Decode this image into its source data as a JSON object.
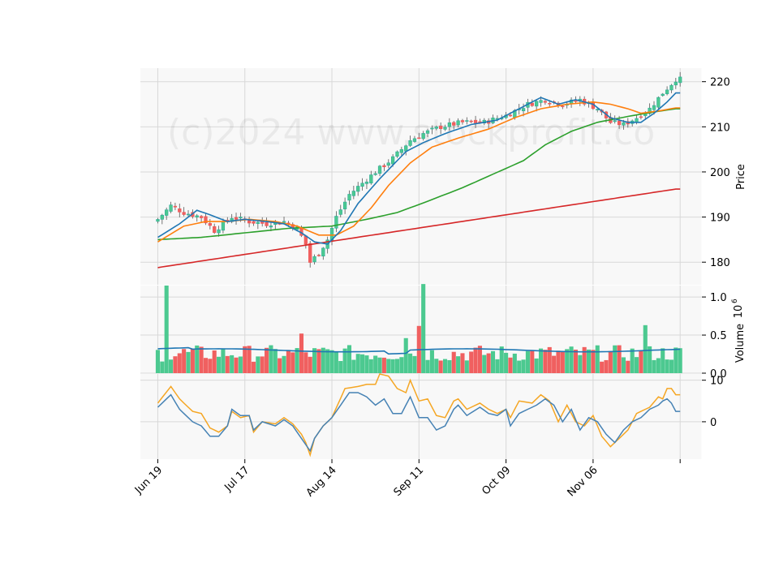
{
  "watermark": "(c)2024 www.stockprofit.co",
  "colors": {
    "up": "#26a69a",
    "up_fill": "#4cc990",
    "down": "#ef5350",
    "down_fill": "#f06060",
    "ma_short": "#1f77b4",
    "ma_mid": "#ff7f0e",
    "ma_long": "#2ca02c",
    "ma_xlong": "#d62728",
    "vol_ma": "#1f77b4",
    "osc_a": "#f5a623",
    "osc_b": "#4682b4",
    "panel_bg": "#f8f8f8",
    "grid": "#d8d8d8"
  },
  "chart_data": [
    {
      "type": "candlestick",
      "panel": "price",
      "ylabel": "Price",
      "ylim": [
        175,
        223
      ],
      "yticks": [
        180,
        190,
        200,
        210,
        220
      ],
      "xlim": [
        -4,
        125
      ],
      "xticks": [
        {
          "i": 0,
          "label": "Jun 19"
        },
        {
          "i": 20,
          "label": "Jul 17"
        },
        {
          "i": 40,
          "label": "Aug 14"
        },
        {
          "i": 60,
          "label": "Sep 11"
        },
        {
          "i": 80,
          "label": "Oct 09"
        },
        {
          "i": 100,
          "label": "Nov 06"
        },
        {
          "i": 120,
          "label": ""
        }
      ],
      "close_anchors": [
        [
          0,
          189.5
        ],
        [
          3,
          192.5
        ],
        [
          6,
          191
        ],
        [
          10,
          190
        ],
        [
          13,
          187
        ],
        [
          17,
          190
        ],
        [
          21,
          189
        ],
        [
          25,
          188.5
        ],
        [
          29,
          189
        ],
        [
          32,
          187.5
        ],
        [
          34,
          184
        ],
        [
          35,
          180
        ],
        [
          37,
          182
        ],
        [
          39,
          185
        ],
        [
          41,
          190
        ],
        [
          44,
          195
        ],
        [
          47,
          197.5
        ],
        [
          50,
          200
        ],
        [
          54,
          203
        ],
        [
          56,
          205
        ],
        [
          58,
          207
        ],
        [
          61,
          208.5
        ],
        [
          65,
          210
        ],
        [
          70,
          211
        ],
        [
          75,
          211
        ],
        [
          80,
          212.5
        ],
        [
          85,
          215
        ],
        [
          89,
          216
        ],
        [
          93,
          215
        ],
        [
          97,
          216
        ],
        [
          101,
          214
        ],
        [
          104,
          211
        ],
        [
          107,
          210.5
        ],
        [
          110,
          212
        ],
        [
          113,
          214
        ],
        [
          116,
          217.5
        ],
        [
          119,
          220.5
        ]
      ],
      "ma_short_anchors": [
        [
          0,
          185.5
        ],
        [
          5,
          188.5
        ],
        [
          9,
          191.5
        ],
        [
          12,
          190.5
        ],
        [
          16,
          189
        ],
        [
          20,
          189.5
        ],
        [
          25,
          189
        ],
        [
          29,
          188.5
        ],
        [
          33,
          186.5
        ],
        [
          36,
          184.5
        ],
        [
          39,
          184
        ],
        [
          42,
          187
        ],
        [
          46,
          193
        ],
        [
          51,
          198.5
        ],
        [
          57,
          204.5
        ],
        [
          61,
          206.5
        ],
        [
          66,
          208.5
        ],
        [
          72,
          210.5
        ],
        [
          78,
          211.5
        ],
        [
          84,
          214.5
        ],
        [
          88,
          216.5
        ],
        [
          92,
          215
        ],
        [
          96,
          216
        ],
        [
          100,
          215
        ],
        [
          104,
          212
        ],
        [
          108,
          211
        ],
        [
          111,
          211
        ],
        [
          114,
          213
        ],
        [
          117,
          215.5
        ],
        [
          119,
          217.5
        ]
      ],
      "ma_mid_anchors": [
        [
          0,
          184.5
        ],
        [
          6,
          188
        ],
        [
          11,
          189
        ],
        [
          16,
          189
        ],
        [
          21,
          189.5
        ],
        [
          27,
          189
        ],
        [
          32,
          188
        ],
        [
          37,
          186
        ],
        [
          41,
          186
        ],
        [
          45,
          188
        ],
        [
          49,
          192
        ],
        [
          53,
          197
        ],
        [
          58,
          202
        ],
        [
          63,
          205.5
        ],
        [
          69,
          207.5
        ],
        [
          76,
          209.5
        ],
        [
          82,
          212
        ],
        [
          88,
          214
        ],
        [
          94,
          215
        ],
        [
          100,
          215.5
        ],
        [
          104,
          215
        ],
        [
          108,
          214
        ],
        [
          111,
          213
        ],
        [
          115,
          213.5
        ],
        [
          119,
          214.2
        ]
      ],
      "ma_long_anchors": [
        [
          0,
          185
        ],
        [
          10,
          185.5
        ],
        [
          20,
          186.5
        ],
        [
          30,
          187.5
        ],
        [
          40,
          188
        ],
        [
          48,
          189.5
        ],
        [
          55,
          191
        ],
        [
          62,
          193.5
        ],
        [
          70,
          196.5
        ],
        [
          77,
          199.5
        ],
        [
          84,
          202.5
        ],
        [
          89,
          206
        ],
        [
          95,
          209
        ],
        [
          101,
          211
        ],
        [
          108,
          212.3
        ],
        [
          114,
          213.3
        ],
        [
          119,
          214
        ]
      ],
      "ma_xlong_anchors": [
        [
          0,
          178.8
        ],
        [
          119,
          196.2
        ]
      ]
    },
    {
      "type": "bar",
      "panel": "volume",
      "ylabel": "Volume",
      "scale_label": "10^6",
      "ylim": [
        0,
        1.15
      ],
      "yticks": [
        0.0,
        0.5,
        1.0
      ],
      "ytick_labels": [
        "0.0",
        "0.5",
        "1.0"
      ],
      "spikes": [
        [
          2,
          1.15
        ],
        [
          33,
          0.52
        ],
        [
          57,
          0.46
        ],
        [
          60,
          0.62
        ],
        [
          61,
          1.17
        ],
        [
          112,
          0.63
        ]
      ],
      "ma_level": 0.3
    },
    {
      "type": "line",
      "panel": "oscillator",
      "ylim": [
        -9,
        11.5
      ],
      "yticks": [
        0,
        10
      ],
      "osc_a_anchors": [
        [
          0,
          4.5
        ],
        [
          3,
          8.5
        ],
        [
          5,
          5.5
        ],
        [
          8,
          2.5
        ],
        [
          10,
          2
        ],
        [
          12,
          -1.5
        ],
        [
          14,
          -2.5
        ],
        [
          16,
          -1
        ],
        [
          17,
          2.5
        ],
        [
          19,
          1
        ],
        [
          21,
          1.5
        ],
        [
          22,
          -2.5
        ],
        [
          24,
          0
        ],
        [
          27,
          -0.5
        ],
        [
          29,
          1
        ],
        [
          31,
          -0.5
        ],
        [
          33,
          -3
        ],
        [
          34,
          -5
        ],
        [
          35,
          -8
        ],
        [
          36,
          -4
        ],
        [
          38,
          -1
        ],
        [
          40,
          1
        ],
        [
          43,
          8
        ],
        [
          46,
          8.5
        ],
        [
          48,
          9
        ],
        [
          50,
          9
        ],
        [
          51,
          11.5
        ],
        [
          53,
          11
        ],
        [
          55,
          8
        ],
        [
          57,
          7
        ],
        [
          58,
          10
        ],
        [
          60,
          5
        ],
        [
          62,
          5.5
        ],
        [
          64,
          1.5
        ],
        [
          66,
          1
        ],
        [
          68,
          5
        ],
        [
          69,
          5.5
        ],
        [
          71,
          3
        ],
        [
          74,
          4.5
        ],
        [
          76,
          3
        ],
        [
          78,
          2
        ],
        [
          80,
          3
        ],
        [
          81,
          1
        ],
        [
          83,
          5
        ],
        [
          86,
          4.5
        ],
        [
          88,
          6.5
        ],
        [
          90,
          5
        ],
        [
          92,
          0
        ],
        [
          94,
          4
        ],
        [
          96,
          0
        ],
        [
          98,
          -1
        ],
        [
          100,
          1.5
        ],
        [
          102,
          -3.5
        ],
        [
          104,
          -6
        ],
        [
          106,
          -4
        ],
        [
          108,
          -2
        ],
        [
          110,
          2
        ],
        [
          113,
          3.5
        ],
        [
          115,
          6
        ],
        [
          116,
          5.5
        ],
        [
          117,
          8
        ],
        [
          118,
          8
        ],
        [
          119,
          6.5
        ]
      ],
      "osc_b_anchors": [
        [
          0,
          3.5
        ],
        [
          3,
          6.5
        ],
        [
          5,
          3
        ],
        [
          8,
          0
        ],
        [
          10,
          -1
        ],
        [
          12,
          -3.5
        ],
        [
          14,
          -3.5
        ],
        [
          16,
          -1
        ],
        [
          17,
          3
        ],
        [
          19,
          1.5
        ],
        [
          21,
          1.5
        ],
        [
          22,
          -2
        ],
        [
          24,
          0
        ],
        [
          27,
          -1
        ],
        [
          29,
          0.5
        ],
        [
          31,
          -1
        ],
        [
          33,
          -4
        ],
        [
          35,
          -7
        ],
        [
          36,
          -4
        ],
        [
          38,
          -1
        ],
        [
          40,
          1
        ],
        [
          42,
          4
        ],
        [
          44,
          7
        ],
        [
          46,
          7
        ],
        [
          48,
          6
        ],
        [
          50,
          4
        ],
        [
          52,
          5.5
        ],
        [
          54,
          2
        ],
        [
          56,
          2
        ],
        [
          58,
          6
        ],
        [
          60,
          1
        ],
        [
          62,
          1
        ],
        [
          64,
          -2
        ],
        [
          66,
          -1
        ],
        [
          68,
          3
        ],
        [
          69,
          4
        ],
        [
          71,
          1.5
        ],
        [
          74,
          3.5
        ],
        [
          76,
          2
        ],
        [
          78,
          1.5
        ],
        [
          80,
          3
        ],
        [
          81,
          -1
        ],
        [
          83,
          2
        ],
        [
          85,
          3
        ],
        [
          87,
          4
        ],
        [
          89,
          5.5
        ],
        [
          91,
          4
        ],
        [
          93,
          0
        ],
        [
          95,
          3
        ],
        [
          97,
          -2
        ],
        [
          99,
          1
        ],
        [
          101,
          0
        ],
        [
          103,
          -3
        ],
        [
          105,
          -5
        ],
        [
          107,
          -2
        ],
        [
          109,
          0
        ],
        [
          111,
          1
        ],
        [
          113,
          3
        ],
        [
          115,
          4
        ],
        [
          116,
          5
        ],
        [
          117,
          5.5
        ],
        [
          118,
          4.5
        ],
        [
          119,
          2.5
        ]
      ]
    }
  ]
}
